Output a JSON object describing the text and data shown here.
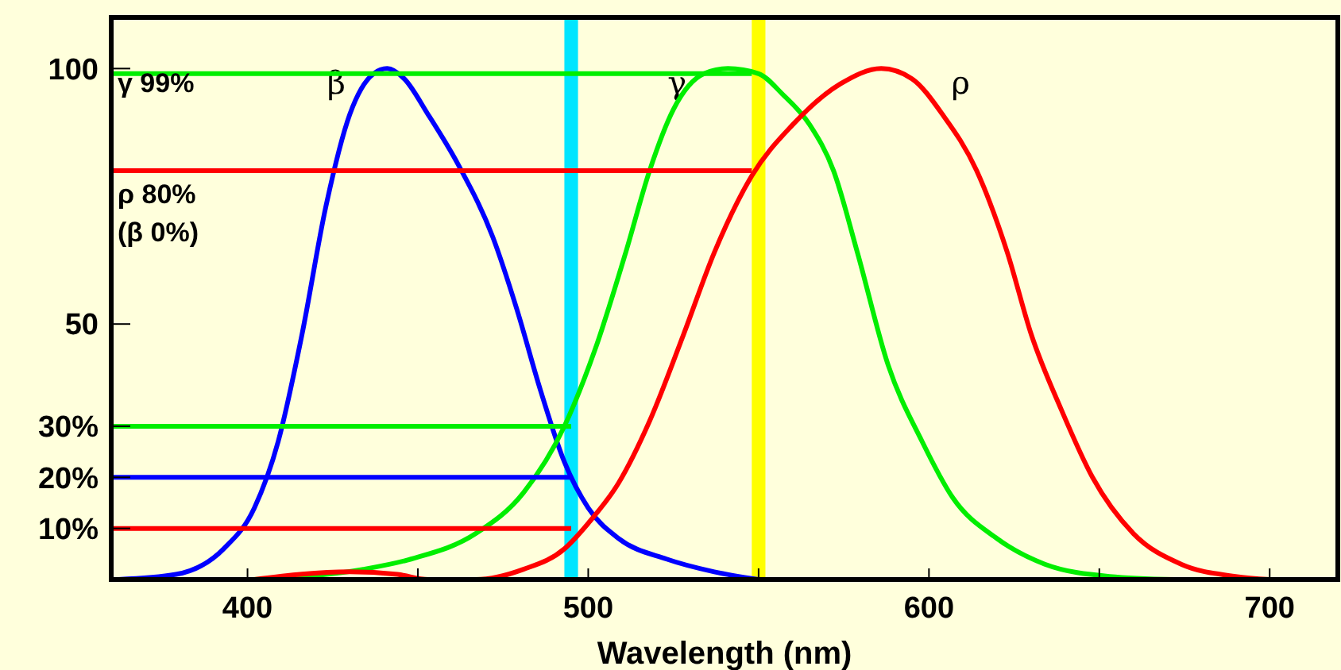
{
  "chart_data": {
    "type": "line",
    "xlabel": "Wavelength (nm)",
    "xlim": [
      360,
      720
    ],
    "ylim": [
      0,
      110
    ],
    "xticks": [
      400,
      {
        "value": 450,
        "label": null
      },
      500,
      {
        "value": 550,
        "label": null
      },
      600,
      {
        "value": 650,
        "label": null
      },
      700
    ],
    "yticks": [
      {
        "value": 10,
        "label": "10%"
      },
      {
        "value": 20,
        "label": "20%"
      },
      {
        "value": 30,
        "label": "30%"
      },
      50,
      100
    ],
    "grid": false,
    "marker": "none",
    "line_style": "solid",
    "series": [
      {
        "name": "β",
        "color": "#0000ff",
        "x": [
          362,
          379,
          393,
          402,
          409,
          416,
          423,
          430,
          437,
          441,
          446,
          453,
          462,
          472,
          479,
          486,
          493,
          500,
          509,
          523,
          537,
          550
        ],
        "values": [
          0,
          1,
          6,
          14,
          27,
          48,
          73,
          91,
          99,
          100,
          98,
          91,
          81,
          67,
          53,
          37,
          23,
          14,
          8,
          4,
          1.5,
          0
        ]
      },
      {
        "name": "γ",
        "color": "#00ee00",
        "x": [
          402,
          434,
          448,
          467,
          481,
          493,
          502,
          511,
          518,
          525,
          534,
          541,
          550,
          557,
          565,
          572,
          579,
          588,
          598,
          607,
          620,
          634,
          653,
          672
        ],
        "values": [
          0,
          2,
          4,
          9,
          17,
          30,
          45,
          64,
          80,
          92,
          99,
          100,
          99,
          95,
          89,
          80,
          64,
          42,
          27,
          16,
          8,
          3,
          0.6,
          0
        ]
      },
      {
        "name": "ρ",
        "color": "#ff0000",
        "x": [
          402,
          430,
          444,
          453,
          467,
          481,
          493,
          500,
          509,
          518,
          528,
          537,
          548,
          560,
          574,
          586,
          595,
          604,
          614,
          623,
          630,
          639,
          648,
          660,
          674,
          690,
          700
        ],
        "values": [
          0,
          1.5,
          1,
          0,
          0,
          2,
          6,
          11,
          19,
          31,
          48,
          64,
          79,
          89,
          97,
          100,
          98,
          91,
          80,
          64,
          48,
          33,
          20,
          9,
          3,
          0.6,
          0
        ]
      },
      {
        "color": "#00ee00",
        "x": [
          360,
          548
        ],
        "values": [
          99,
          99
        ]
      },
      {
        "color": "#ff0000",
        "x": [
          360,
          548
        ],
        "values": [
          80,
          80
        ]
      },
      {
        "color": "#00ee00",
        "x": [
          360,
          495
        ],
        "values": [
          30,
          30
        ]
      },
      {
        "color": "#0000ff",
        "x": [
          360,
          495
        ],
        "values": [
          20,
          20
        ]
      },
      {
        "color": "#ff0000",
        "x": [
          360,
          495
        ],
        "values": [
          10,
          10
        ]
      }
    ],
    "bands": [
      {
        "axis": "x",
        "from": 493,
        "to": 497,
        "color": "#00e5ff"
      },
      {
        "axis": "x",
        "from": 548,
        "to": 552,
        "color": "#ffff00"
      }
    ],
    "annotations": [
      "γ 99%",
      "ρ 80%",
      "(β 0%)"
    ]
  }
}
